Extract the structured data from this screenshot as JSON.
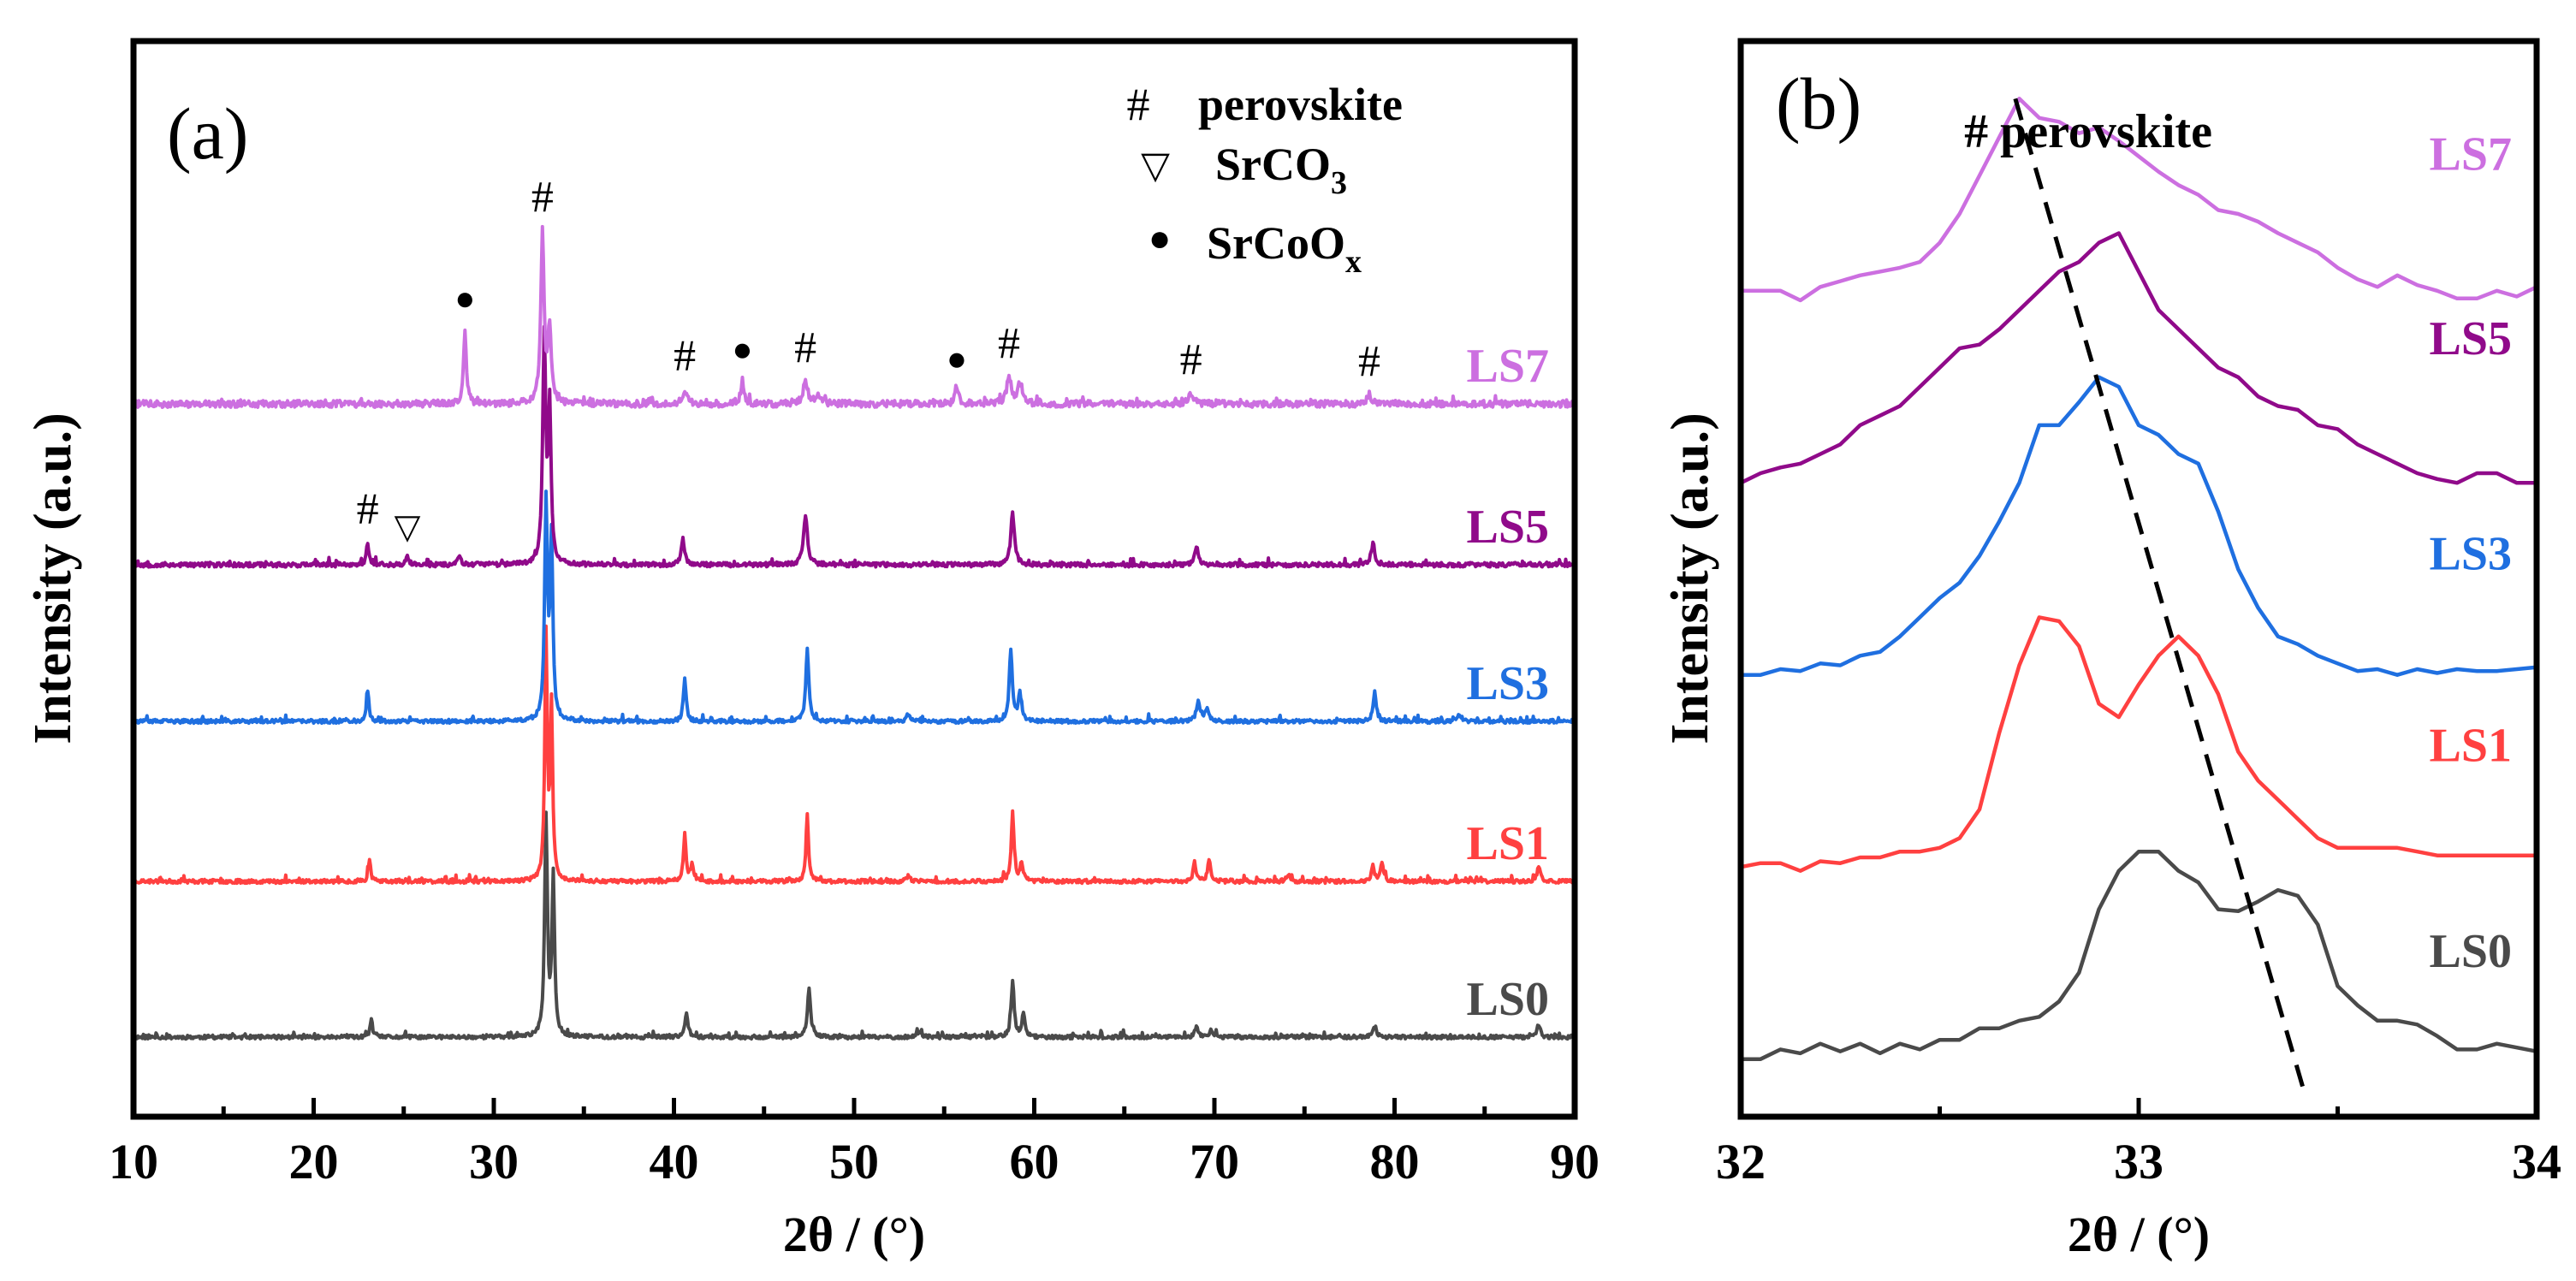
{
  "colors": {
    "LS0": "#4a4a4a",
    "LS1": "#ff4040",
    "LS3": "#1f6fe0",
    "LS5": "#900a8a",
    "LS7": "#cc6fe0",
    "frame": "#000000",
    "dash": "#000000"
  },
  "chart_data": [
    {
      "type": "line",
      "panel_label": "(a)",
      "xlabel": "2θ / (°)",
      "ylabel": "Intensity (a.u.)",
      "xlim": [
        10,
        90
      ],
      "x_ticks": [
        10,
        20,
        30,
        40,
        50,
        60,
        70,
        80,
        90
      ],
      "x_tick_labels": [
        "10",
        "20",
        "30",
        "40",
        "50",
        "60",
        "70",
        "80",
        "90"
      ],
      "y_ticks": "none",
      "series": [
        {
          "name": "LS0",
          "offset": 0,
          "noise": 0.01,
          "seed": 11,
          "peaks": [
            [
              23.2,
              0.1,
              0.15
            ],
            [
              32.9,
              1.15,
              0.18
            ],
            [
              33.3,
              0.85,
              0.17
            ],
            [
              40.7,
              0.13,
              0.2
            ],
            [
              47.5,
              0.26,
              0.2
            ],
            [
              53.6,
              0.03,
              0.25
            ],
            [
              58.8,
              0.29,
              0.2
            ],
            [
              59.4,
              0.12,
              0.2
            ],
            [
              69.0,
              0.06,
              0.2
            ],
            [
              69.8,
              0.04,
              0.2
            ],
            [
              78.9,
              0.05,
              0.25
            ],
            [
              88.0,
              0.07,
              0.2
            ]
          ]
        },
        {
          "name": "LS1",
          "offset": 1,
          "noise": 0.01,
          "seed": 23,
          "peaks": [
            [
              23.1,
              0.12,
              0.15
            ],
            [
              32.9,
              1.3,
              0.16
            ],
            [
              33.2,
              0.9,
              0.16
            ],
            [
              40.6,
              0.25,
              0.18
            ],
            [
              41.0,
              0.08,
              0.18
            ],
            [
              47.4,
              0.36,
              0.16
            ],
            [
              53.0,
              0.03,
              0.2
            ],
            [
              58.8,
              0.37,
              0.18
            ],
            [
              59.3,
              0.1,
              0.18
            ],
            [
              68.9,
              0.1,
              0.18
            ],
            [
              69.7,
              0.12,
              0.18
            ],
            [
              74.1,
              0.04,
              0.2
            ],
            [
              78.8,
              0.08,
              0.2
            ],
            [
              79.3,
              0.09,
              0.2
            ],
            [
              88.0,
              0.08,
              0.2
            ]
          ]
        },
        {
          "name": "LS3",
          "offset": 2,
          "noise": 0.01,
          "seed": 37,
          "peaks": [
            [
              23.0,
              0.16,
              0.16
            ],
            [
              32.9,
              1.15,
              0.18
            ],
            [
              33.2,
              0.95,
              0.18
            ],
            [
              40.6,
              0.23,
              0.18
            ],
            [
              47.4,
              0.38,
              0.2
            ],
            [
              53.0,
              0.04,
              0.2
            ],
            [
              58.7,
              0.38,
              0.2
            ],
            [
              59.2,
              0.15,
              0.2
            ],
            [
              69.1,
              0.1,
              0.25
            ],
            [
              69.6,
              0.07,
              0.25
            ],
            [
              78.9,
              0.16,
              0.2
            ],
            [
              83.6,
              0.04,
              0.25
            ]
          ]
        },
        {
          "name": "LS5",
          "offset": 3,
          "noise": 0.012,
          "seed": 53,
          "peaks": [
            [
              23.0,
              0.12,
              0.16
            ],
            [
              25.2,
              0.04,
              0.2
            ],
            [
              28.1,
              0.05,
              0.2
            ],
            [
              32.8,
              1.2,
              0.2
            ],
            [
              33.1,
              0.8,
              0.18
            ],
            [
              40.5,
              0.14,
              0.2
            ],
            [
              47.3,
              0.27,
              0.25
            ],
            [
              58.8,
              0.27,
              0.25
            ],
            [
              69.0,
              0.1,
              0.25
            ],
            [
              78.8,
              0.11,
              0.25
            ]
          ]
        },
        {
          "name": "LS7",
          "offset": 4,
          "noise": 0.018,
          "seed": 71,
          "peaks": [
            [
              28.4,
              0.4,
              0.18
            ],
            [
              32.7,
              0.9,
              0.22
            ],
            [
              33.1,
              0.4,
              0.2
            ],
            [
              40.6,
              0.08,
              0.25
            ],
            [
              43.8,
              0.13,
              0.2
            ],
            [
              47.3,
              0.12,
              0.3
            ],
            [
              48.0,
              0.05,
              0.3
            ],
            [
              55.7,
              0.08,
              0.25
            ],
            [
              58.6,
              0.14,
              0.3
            ],
            [
              59.2,
              0.1,
              0.3
            ],
            [
              68.7,
              0.06,
              0.3
            ],
            [
              78.6,
              0.05,
              0.3
            ]
          ]
        }
      ],
      "series_labels": [
        {
          "text": "LS0",
          "series": "LS0"
        },
        {
          "text": "LS1",
          "series": "LS1"
        },
        {
          "text": "LS3",
          "series": "LS3"
        },
        {
          "text": "LS5",
          "series": "LS5"
        },
        {
          "text": "LS7",
          "series": "LS7"
        }
      ],
      "legend": [
        {
          "symbol": "#",
          "label": "perovskite",
          "sub": ""
        },
        {
          "symbol": "▽",
          "label": "SrCO",
          "sub": "3"
        },
        {
          "symbol": "●",
          "label": "SrCoO",
          "sub": "x"
        }
      ],
      "annotations": [
        {
          "series": "LS5",
          "x": 23.0,
          "symbol": "#"
        },
        {
          "series": "LS5",
          "x": 25.2,
          "symbol": "▽"
        },
        {
          "series": "LS7",
          "x": 28.4,
          "symbol": "●"
        },
        {
          "series": "LS7",
          "x": 32.7,
          "symbol": "#"
        },
        {
          "series": "LS7",
          "x": 40.6,
          "symbol": "#"
        },
        {
          "series": "LS7",
          "x": 43.8,
          "symbol": "●"
        },
        {
          "series": "LS7",
          "x": 47.3,
          "symbol": "#"
        },
        {
          "series": "LS7",
          "x": 55.7,
          "symbol": "●"
        },
        {
          "series": "LS7",
          "x": 58.6,
          "symbol": "#"
        },
        {
          "series": "LS7",
          "x": 68.7,
          "symbol": "#"
        },
        {
          "series": "LS7",
          "x": 78.6,
          "symbol": "#"
        }
      ]
    },
    {
      "type": "line",
      "panel_label": "(b)",
      "title": "# perovskite",
      "xlabel": "2θ / (°)",
      "ylabel": "Intensity (a.u.)",
      "xlim": [
        32,
        34
      ],
      "ylim": [
        -0.3,
        5.3
      ],
      "x_ticks": [
        32,
        33,
        34
      ],
      "x_tick_labels": [
        "32",
        "33",
        "34"
      ],
      "y_ticks": "none",
      "series": [
        {
          "name": "LS0",
          "x": [
            32.0,
            32.05,
            32.1,
            32.15,
            32.2,
            32.25,
            32.3,
            32.35,
            32.4,
            32.45,
            32.5,
            32.55,
            32.6,
            32.65,
            32.7,
            32.75,
            32.8,
            32.85,
            32.9,
            32.95,
            33.0,
            33.05,
            33.1,
            33.15,
            33.2,
            33.25,
            33.3,
            33.35,
            33.4,
            33.45,
            33.5,
            33.55,
            33.6,
            33.65,
            33.7,
            33.75,
            33.8,
            33.85,
            33.9,
            33.95,
            34.0
          ],
          "y": [
            0.0,
            0.0,
            0.05,
            0.03,
            0.08,
            0.04,
            0.08,
            0.03,
            0.08,
            0.05,
            0.1,
            0.1,
            0.16,
            0.16,
            0.2,
            0.22,
            0.3,
            0.45,
            0.78,
            0.98,
            1.08,
            1.08,
            0.98,
            0.92,
            0.78,
            0.77,
            0.82,
            0.88,
            0.85,
            0.7,
            0.38,
            0.28,
            0.2,
            0.2,
            0.18,
            0.12,
            0.05,
            0.05,
            0.08,
            0.06,
            0.04
          ]
        },
        {
          "name": "LS1",
          "x": [
            32.0,
            32.05,
            32.1,
            32.15,
            32.2,
            32.25,
            32.3,
            32.35,
            32.4,
            32.45,
            32.5,
            32.55,
            32.6,
            32.65,
            32.7,
            32.75,
            32.8,
            32.85,
            32.9,
            32.95,
            33.0,
            33.05,
            33.1,
            33.15,
            33.2,
            33.25,
            33.3,
            33.35,
            33.4,
            33.45,
            33.5,
            33.55,
            33.6,
            33.65,
            33.7,
            33.75,
            33.8,
            33.85,
            33.9,
            33.95,
            34.0
          ],
          "y": [
            1.0,
            1.02,
            1.02,
            0.98,
            1.03,
            1.02,
            1.05,
            1.05,
            1.08,
            1.08,
            1.1,
            1.15,
            1.3,
            1.7,
            2.05,
            2.3,
            2.28,
            2.15,
            1.85,
            1.78,
            1.95,
            2.1,
            2.2,
            2.1,
            1.9,
            1.6,
            1.45,
            1.35,
            1.25,
            1.15,
            1.1,
            1.1,
            1.1,
            1.1,
            1.08,
            1.06,
            1.06,
            1.06,
            1.06,
            1.06,
            1.06
          ]
        },
        {
          "name": "LS3",
          "x": [
            32.0,
            32.05,
            32.1,
            32.15,
            32.2,
            32.25,
            32.3,
            32.35,
            32.4,
            32.45,
            32.5,
            32.55,
            32.6,
            32.65,
            32.7,
            32.75,
            32.8,
            32.85,
            32.9,
            32.95,
            33.0,
            33.05,
            33.1,
            33.15,
            33.2,
            33.25,
            33.3,
            33.35,
            33.4,
            33.45,
            33.5,
            33.55,
            33.6,
            33.65,
            33.7,
            33.75,
            33.8,
            33.85,
            33.9,
            33.95,
            34.0
          ],
          "y": [
            2.0,
            2.0,
            2.03,
            2.02,
            2.06,
            2.05,
            2.1,
            2.12,
            2.2,
            2.3,
            2.4,
            2.48,
            2.62,
            2.8,
            3.0,
            3.3,
            3.3,
            3.42,
            3.55,
            3.5,
            3.3,
            3.25,
            3.15,
            3.1,
            2.85,
            2.55,
            2.35,
            2.2,
            2.16,
            2.1,
            2.06,
            2.02,
            2.03,
            2.0,
            2.03,
            2.01,
            2.03,
            2.02,
            2.02,
            2.03,
            2.04
          ]
        },
        {
          "name": "LS5",
          "x": [
            32.0,
            32.05,
            32.1,
            32.15,
            32.2,
            32.25,
            32.3,
            32.35,
            32.4,
            32.45,
            32.5,
            32.55,
            32.6,
            32.65,
            32.7,
            32.75,
            32.8,
            32.85,
            32.9,
            32.95,
            33.0,
            33.05,
            33.1,
            33.15,
            33.2,
            33.25,
            33.3,
            33.35,
            33.4,
            33.45,
            33.5,
            33.55,
            33.6,
            33.65,
            33.7,
            33.75,
            33.8,
            33.85,
            33.9,
            33.95,
            34.0
          ],
          "y": [
            3.0,
            3.05,
            3.08,
            3.1,
            3.15,
            3.2,
            3.3,
            3.35,
            3.4,
            3.5,
            3.6,
            3.7,
            3.72,
            3.8,
            3.9,
            4.0,
            4.1,
            4.15,
            4.25,
            4.3,
            4.1,
            3.9,
            3.8,
            3.7,
            3.6,
            3.55,
            3.45,
            3.4,
            3.38,
            3.3,
            3.28,
            3.2,
            3.15,
            3.1,
            3.05,
            3.02,
            3.0,
            3.05,
            3.05,
            3.0,
            3.0
          ]
        },
        {
          "name": "LS7",
          "x": [
            32.0,
            32.05,
            32.1,
            32.15,
            32.2,
            32.25,
            32.3,
            32.35,
            32.4,
            32.45,
            32.5,
            32.55,
            32.6,
            32.65,
            32.7,
            32.75,
            32.8,
            32.85,
            32.9,
            32.95,
            33.0,
            33.05,
            33.1,
            33.15,
            33.2,
            33.25,
            33.3,
            33.35,
            33.4,
            33.45,
            33.5,
            33.55,
            33.6,
            33.65,
            33.7,
            33.75,
            33.8,
            33.85,
            33.9,
            33.95,
            34.0
          ],
          "y": [
            4.0,
            4.0,
            4.0,
            3.95,
            4.02,
            4.05,
            4.08,
            4.1,
            4.12,
            4.15,
            4.25,
            4.4,
            4.6,
            4.8,
            5.0,
            4.9,
            4.88,
            4.82,
            4.85,
            4.78,
            4.7,
            4.62,
            4.55,
            4.5,
            4.42,
            4.4,
            4.36,
            4.3,
            4.25,
            4.2,
            4.12,
            4.06,
            4.02,
            4.08,
            4.03,
            4.0,
            3.96,
            3.96,
            4.0,
            3.97,
            4.02
          ]
        }
      ],
      "series_labels": [
        {
          "text": "LS0",
          "series": "LS0"
        },
        {
          "text": "LS1",
          "series": "LS1"
        },
        {
          "text": "LS3",
          "series": "LS3"
        },
        {
          "text": "LS5",
          "series": "LS5"
        },
        {
          "text": "LS7",
          "series": "LS7"
        }
      ],
      "guide_line": {
        "style": "dashed",
        "from": [
          32.69,
          5.0
        ],
        "to": [
          33.42,
          -0.2
        ]
      }
    }
  ]
}
